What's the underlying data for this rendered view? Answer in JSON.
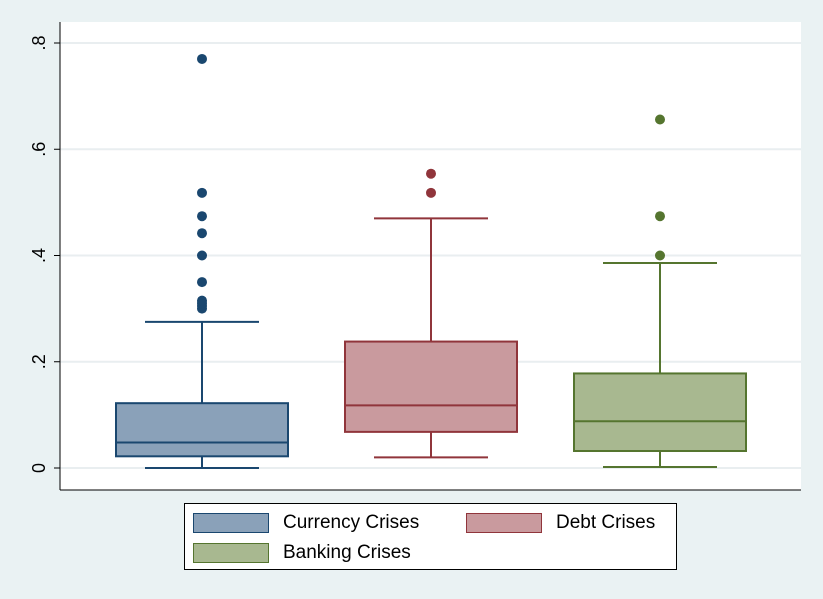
{
  "chart_data": {
    "type": "box",
    "title": "",
    "xlabel": "",
    "ylabel": "",
    "ylim": [
      0,
      0.8
    ],
    "yticks": [
      0,
      0.2,
      0.4,
      0.6,
      0.8
    ],
    "ytick_labels": [
      "0",
      ".2",
      ".4",
      ".6",
      ".8"
    ],
    "grid": true,
    "legend_position": "bottom",
    "series": [
      {
        "name": "Currency Crises",
        "fill": "#8aa1b9",
        "stroke": "#1a476f",
        "whisker_low": 0.0,
        "q1": 0.022,
        "median": 0.048,
        "q3": 0.122,
        "whisker_high": 0.275,
        "outliers": [
          0.3,
          0.305,
          0.31,
          0.315,
          0.35,
          0.4,
          0.442,
          0.474,
          0.518,
          0.77
        ]
      },
      {
        "name": "Debt Crises",
        "fill": "#c99a9e",
        "stroke": "#90353b",
        "whisker_low": 0.02,
        "q1": 0.068,
        "median": 0.118,
        "q3": 0.238,
        "whisker_high": 0.47,
        "outliers": [
          0.518,
          0.554
        ]
      },
      {
        "name": "Banking Crises",
        "fill": "#a8b890",
        "stroke": "#55752f",
        "whisker_low": 0.002,
        "q1": 0.032,
        "median": 0.088,
        "q3": 0.178,
        "whisker_high": 0.386,
        "outliers": [
          0.4,
          0.474,
          0.656
        ]
      }
    ]
  }
}
